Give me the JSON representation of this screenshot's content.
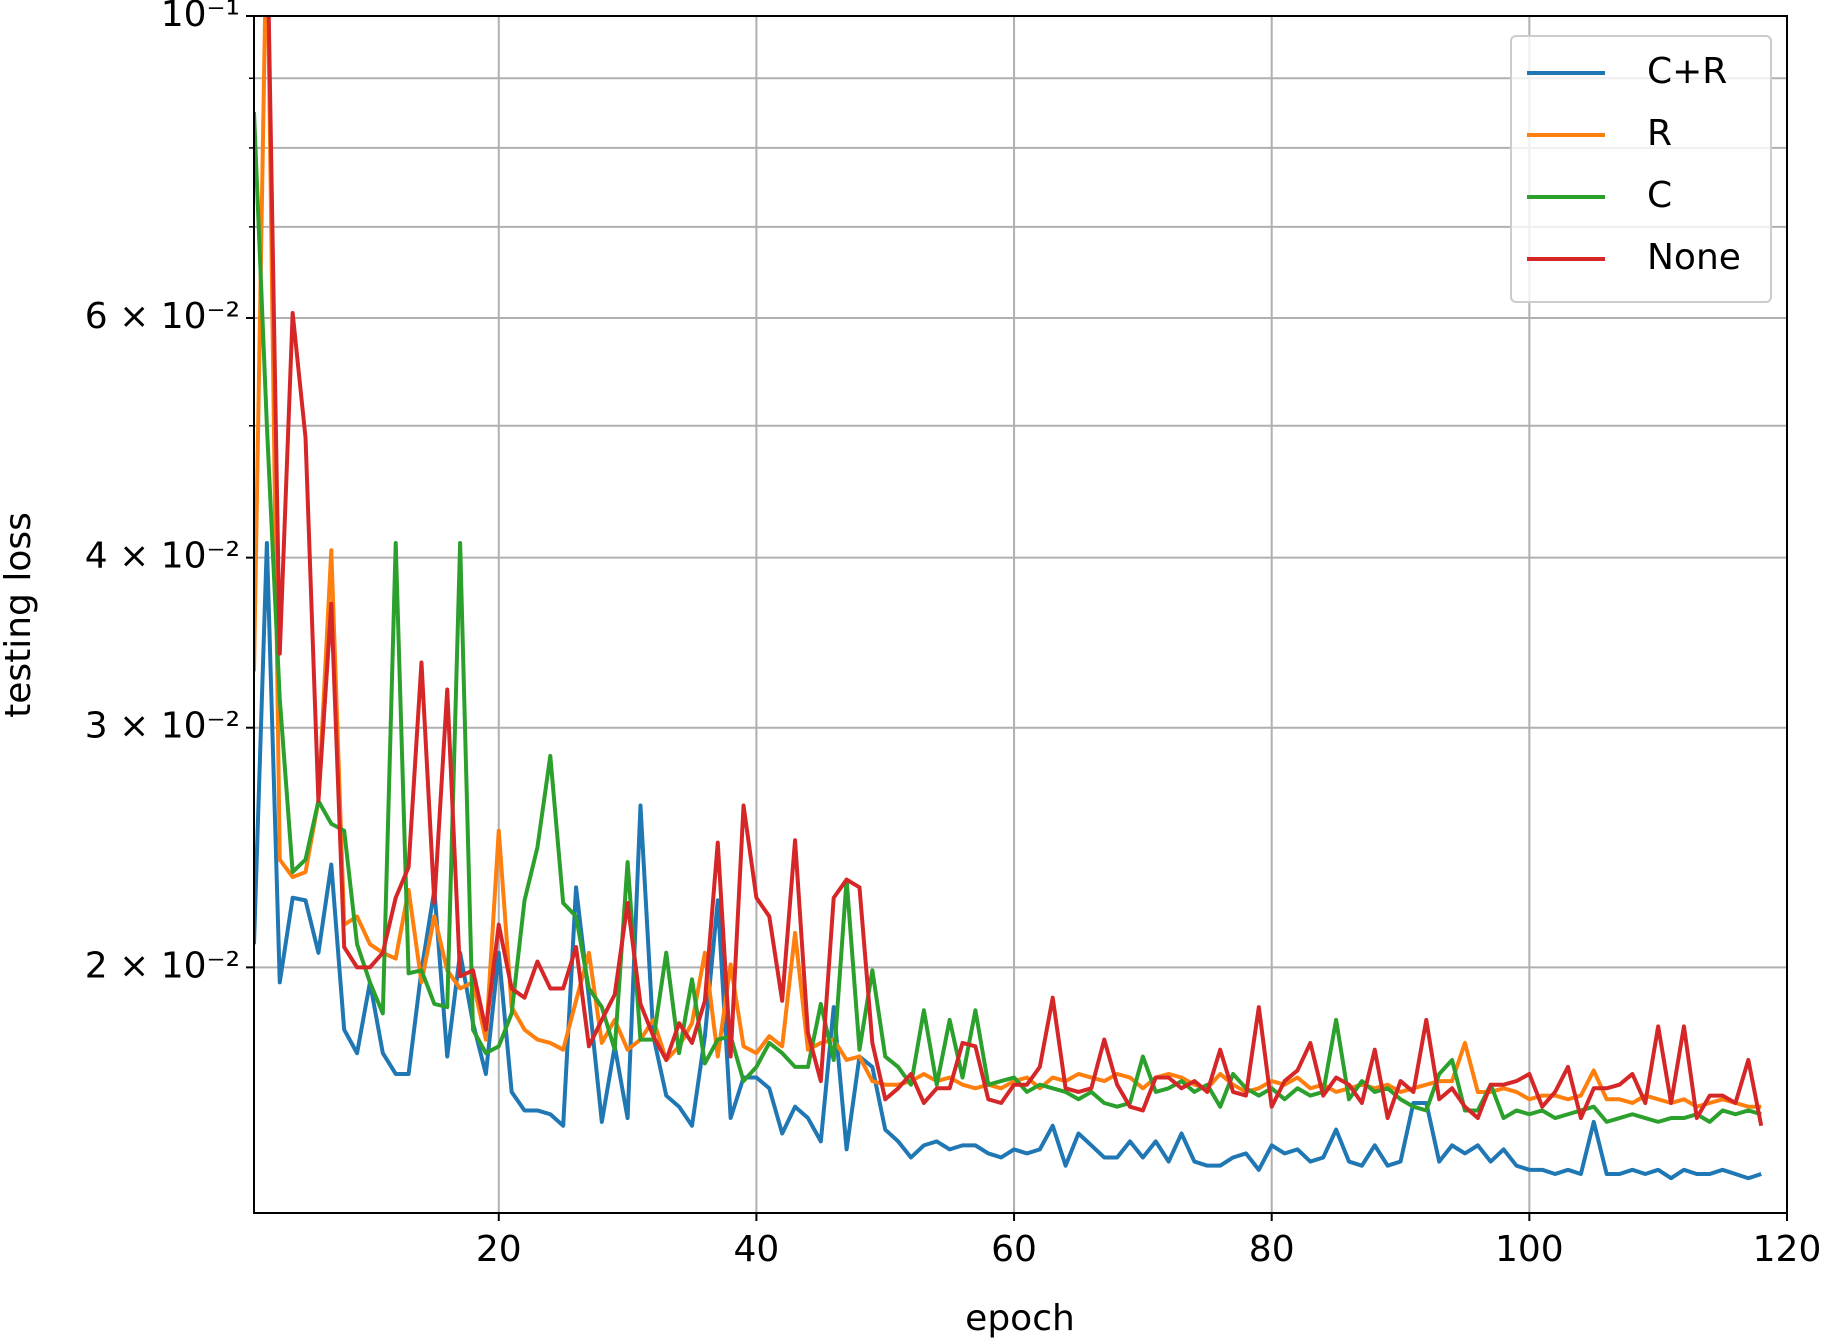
{
  "chart_data": {
    "type": "line",
    "x_label": "epoch",
    "y_label": "testing loss",
    "log_y": true,
    "grid": true,
    "legend": "upper right",
    "xlim": [
      1,
      120
    ],
    "xticks": [
      20,
      40,
      60,
      80,
      100,
      120
    ],
    "ylim": [
      0.0132,
      0.1
    ],
    "yticks": [
      {
        "value": 0.1,
        "label": "10⁻¹"
      },
      {
        "value": 0.06,
        "label": "6 × 10⁻²"
      },
      {
        "value": 0.04,
        "label": "4 × 10⁻²"
      },
      {
        "value": 0.03,
        "label": "3 × 10⁻²"
      },
      {
        "value": 0.02,
        "label": "2 × 10⁻²"
      }
    ],
    "yminor_ticks": [
      0.05,
      0.07,
      0.08,
      0.09
    ],
    "x": [
      1,
      2,
      3,
      4,
      5,
      6,
      7,
      8,
      9,
      10,
      11,
      12,
      13,
      14,
      15,
      16,
      17,
      18,
      19,
      20,
      21,
      22,
      23,
      24,
      25,
      26,
      27,
      28,
      29,
      30,
      31,
      32,
      33,
      34,
      35,
      36,
      37,
      38,
      39,
      40,
      41,
      42,
      43,
      44,
      45,
      46,
      47,
      48,
      49,
      50,
      51,
      52,
      53,
      54,
      55,
      56,
      57,
      58,
      59,
      60,
      61,
      62,
      63,
      64,
      65,
      66,
      67,
      68,
      69,
      70,
      71,
      72,
      73,
      74,
      75,
      76,
      77,
      78,
      79,
      80,
      81,
      82,
      83,
      84,
      85,
      86,
      87,
      88,
      89,
      90,
      91,
      92,
      93,
      94,
      95,
      96,
      97,
      98,
      99,
      100,
      101,
      102,
      103,
      104,
      105,
      106,
      107,
      108,
      109,
      110,
      111,
      112,
      113,
      114,
      115,
      116,
      117,
      118
    ],
    "series": [
      {
        "name": "C+R",
        "color": "#1f77b4",
        "values": [
          0.0208,
          0.041,
          0.0195,
          0.0225,
          0.0224,
          0.0205,
          0.0238,
          0.018,
          0.0173,
          0.0195,
          0.0173,
          0.0167,
          0.0167,
          0.0199,
          0.0228,
          0.0172,
          0.0205,
          0.0182,
          0.0167,
          0.0205,
          0.0162,
          0.0157,
          0.0157,
          0.0156,
          0.0153,
          0.0229,
          0.019,
          0.0154,
          0.0175,
          0.0155,
          0.0263,
          0.0178,
          0.0161,
          0.0158,
          0.0153,
          0.0178,
          0.0224,
          0.0155,
          0.0166,
          0.0166,
          0.0163,
          0.0151,
          0.0158,
          0.0155,
          0.0149,
          0.0187,
          0.0147,
          0.0172,
          0.0169,
          0.0152,
          0.0149,
          0.0145,
          0.0148,
          0.0149,
          0.0147,
          0.0148,
          0.0148,
          0.0146,
          0.0145,
          0.0147,
          0.0146,
          0.0147,
          0.0153,
          0.0143,
          0.0151,
          0.0148,
          0.0145,
          0.0145,
          0.0149,
          0.0145,
          0.0149,
          0.0144,
          0.0151,
          0.0144,
          0.0143,
          0.0143,
          0.0145,
          0.0146,
          0.0142,
          0.0148,
          0.0146,
          0.0147,
          0.0144,
          0.0145,
          0.0152,
          0.0144,
          0.0143,
          0.0148,
          0.0143,
          0.0144,
          0.0159,
          0.0159,
          0.0144,
          0.0148,
          0.0146,
          0.0148,
          0.0144,
          0.0147,
          0.0143,
          0.0142,
          0.0142,
          0.0141,
          0.0142,
          0.0141,
          0.0154,
          0.0141,
          0.0141,
          0.0142,
          0.0141,
          0.0142,
          0.014,
          0.0142,
          0.0141,
          0.0141,
          0.0142,
          0.0141,
          0.014,
          0.0141
        ]
      },
      {
        "name": "R",
        "color": "#ff7f0e",
        "values": [
          0.033,
          0.12,
          0.024,
          0.0233,
          0.0235,
          0.0265,
          0.0405,
          0.0215,
          0.0218,
          0.0208,
          0.0205,
          0.0203,
          0.0228,
          0.0195,
          0.0218,
          0.0199,
          0.0193,
          0.0195,
          0.0177,
          0.0252,
          0.0187,
          0.018,
          0.0177,
          0.0176,
          0.0174,
          0.0189,
          0.0205,
          0.0176,
          0.0183,
          0.0174,
          0.0177,
          0.0183,
          0.0171,
          0.0175,
          0.0182,
          0.0205,
          0.0172,
          0.0201,
          0.0175,
          0.0173,
          0.0178,
          0.0175,
          0.0212,
          0.0174,
          0.0176,
          0.0177,
          0.0171,
          0.0172,
          0.0165,
          0.0164,
          0.0164,
          0.0165,
          0.0167,
          0.0165,
          0.0166,
          0.0164,
          0.0163,
          0.0164,
          0.0163,
          0.0165,
          0.0166,
          0.0163,
          0.0166,
          0.0165,
          0.0167,
          0.0166,
          0.0165,
          0.0167,
          0.0166,
          0.0163,
          0.0166,
          0.0167,
          0.0166,
          0.0164,
          0.0163,
          0.0167,
          0.0164,
          0.0162,
          0.0163,
          0.0165,
          0.0164,
          0.0166,
          0.0163,
          0.0164,
          0.0162,
          0.0163,
          0.0164,
          0.0163,
          0.0164,
          0.0162,
          0.0163,
          0.0164,
          0.0165,
          0.0165,
          0.0176,
          0.0162,
          0.0162,
          0.0163,
          0.0162,
          0.016,
          0.0161,
          0.0161,
          0.016,
          0.0161,
          0.0168,
          0.016,
          0.016,
          0.0159,
          0.0161,
          0.016,
          0.0159,
          0.016,
          0.0158,
          0.0159,
          0.016,
          0.0159,
          0.0158,
          0.0158
        ]
      },
      {
        "name": "C",
        "color": "#2ca02c",
        "values": [
          0.085,
          0.05,
          0.0315,
          0.0235,
          0.024,
          0.0265,
          0.0255,
          0.0252,
          0.0208,
          0.0195,
          0.0185,
          0.041,
          0.0198,
          0.0199,
          0.0188,
          0.0187,
          0.041,
          0.018,
          0.0173,
          0.0175,
          0.0185,
          0.0224,
          0.0245,
          0.0286,
          0.0223,
          0.0218,
          0.0193,
          0.0187,
          0.0174,
          0.0239,
          0.0177,
          0.0177,
          0.0205,
          0.0173,
          0.0196,
          0.017,
          0.0177,
          0.0178,
          0.0165,
          0.0169,
          0.0176,
          0.0173,
          0.0169,
          0.0169,
          0.0188,
          0.0171,
          0.0232,
          0.0174,
          0.0199,
          0.0172,
          0.0169,
          0.0164,
          0.0186,
          0.0164,
          0.0183,
          0.0166,
          0.0186,
          0.0164,
          0.0165,
          0.0166,
          0.0162,
          0.0164,
          0.0163,
          0.0162,
          0.016,
          0.0162,
          0.0159,
          0.0158,
          0.0159,
          0.0172,
          0.0162,
          0.0163,
          0.0165,
          0.0162,
          0.0164,
          0.0158,
          0.0167,
          0.0163,
          0.0161,
          0.0163,
          0.016,
          0.0163,
          0.0161,
          0.0162,
          0.0183,
          0.016,
          0.0165,
          0.0162,
          0.0163,
          0.016,
          0.0158,
          0.0157,
          0.0167,
          0.0171,
          0.0157,
          0.0157,
          0.0164,
          0.0155,
          0.0157,
          0.0156,
          0.0157,
          0.0155,
          0.0156,
          0.0157,
          0.0158,
          0.0154,
          0.0155,
          0.0156,
          0.0155,
          0.0154,
          0.0155,
          0.0155,
          0.0156,
          0.0154,
          0.0157,
          0.0156,
          0.0157,
          0.0156
        ]
      },
      {
        "name": "None",
        "color": "#d62728",
        "values": [
          0.1,
          0.12,
          0.034,
          0.0605,
          0.049,
          0.0265,
          0.037,
          0.0207,
          0.02,
          0.02,
          0.0205,
          0.0225,
          0.0237,
          0.0335,
          0.0223,
          0.032,
          0.0197,
          0.0199,
          0.018,
          0.0215,
          0.0193,
          0.019,
          0.0202,
          0.0193,
          0.0193,
          0.0207,
          0.0175,
          0.0183,
          0.0191,
          0.0223,
          0.0188,
          0.0178,
          0.0171,
          0.0182,
          0.0176,
          0.0189,
          0.0247,
          0.0172,
          0.0263,
          0.0225,
          0.0218,
          0.0189,
          0.0248,
          0.0179,
          0.0165,
          0.0225,
          0.0232,
          0.0229,
          0.0176,
          0.016,
          0.0163,
          0.0167,
          0.0159,
          0.0163,
          0.0163,
          0.0176,
          0.0175,
          0.016,
          0.0159,
          0.0164,
          0.0164,
          0.0169,
          0.019,
          0.0163,
          0.0162,
          0.0163,
          0.0177,
          0.0164,
          0.0158,
          0.0157,
          0.0166,
          0.0166,
          0.0163,
          0.0165,
          0.0162,
          0.0174,
          0.0162,
          0.0161,
          0.0187,
          0.0158,
          0.0165,
          0.0168,
          0.0176,
          0.0161,
          0.0166,
          0.0164,
          0.0159,
          0.0174,
          0.0155,
          0.0165,
          0.0162,
          0.0183,
          0.016,
          0.0163,
          0.0158,
          0.0155,
          0.0164,
          0.0164,
          0.0165,
          0.0167,
          0.0158,
          0.0162,
          0.0169,
          0.0155,
          0.0163,
          0.0163,
          0.0164,
          0.0167,
          0.0159,
          0.0181,
          0.0159,
          0.0181,
          0.0155,
          0.0161,
          0.0161,
          0.0159,
          0.0171,
          0.0153
        ]
      }
    ]
  }
}
